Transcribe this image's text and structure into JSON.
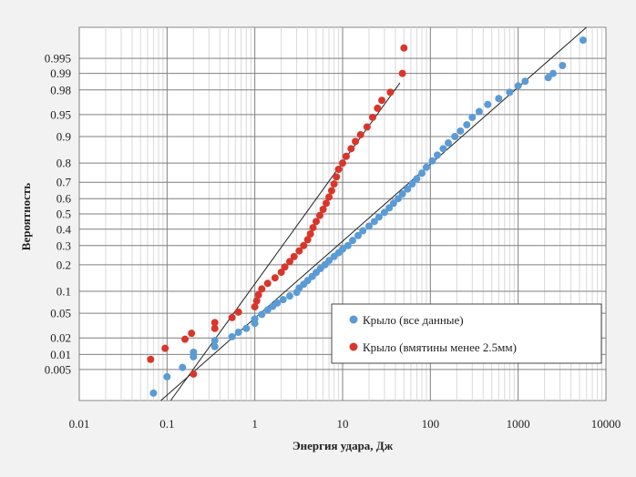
{
  "chart_data": {
    "type": "scatter",
    "xlabel": "Энергия удара, Дж",
    "ylabel": "Вероятность",
    "xscale": "log",
    "yscale": "probability",
    "xlim": [
      0.01,
      10000
    ],
    "ylim": [
      0.001,
      0.999
    ],
    "grid": true,
    "legend_position": "bottom-right",
    "x_tick_labels": [
      "0.01",
      "0.1",
      "1",
      "10",
      "100",
      "1000",
      "10000"
    ],
    "y_tick_labels": [
      "0.995",
      "0.99",
      "0.98",
      "0.95",
      "0.9",
      "0.8",
      "0.7",
      "0.6",
      "0.5",
      "0.4",
      "0.3",
      "0.2",
      "0.1",
      "0.05",
      "0.02",
      "0.01",
      "0.005"
    ],
    "series": [
      {
        "name": "Крыло (все данные)",
        "color": "#5b9bd5",
        "points": [
          [
            0.07,
            0.0015
          ],
          [
            0.1,
            0.0035
          ],
          [
            0.15,
            0.0055
          ],
          [
            0.2,
            0.009
          ],
          [
            0.2,
            0.011
          ],
          [
            0.35,
            0.014
          ],
          [
            0.35,
            0.018
          ],
          [
            0.55,
            0.021
          ],
          [
            0.65,
            0.025
          ],
          [
            0.8,
            0.029
          ],
          [
            1.0,
            0.035
          ],
          [
            1.0,
            0.041
          ],
          [
            1.2,
            0.048
          ],
          [
            1.4,
            0.056
          ],
          [
            1.6,
            0.063
          ],
          [
            1.8,
            0.07
          ],
          [
            2.1,
            0.078
          ],
          [
            2.5,
            0.087
          ],
          [
            3.0,
            0.097
          ],
          [
            3.2,
            0.11
          ],
          [
            3.6,
            0.122
          ],
          [
            4.0,
            0.135
          ],
          [
            4.5,
            0.15
          ],
          [
            5.0,
            0.166
          ],
          [
            5.6,
            0.183
          ],
          [
            6.3,
            0.2
          ],
          [
            7.0,
            0.22
          ],
          [
            8.0,
            0.24
          ],
          [
            9.0,
            0.26
          ],
          [
            10.0,
            0.28
          ],
          [
            11.5,
            0.3
          ],
          [
            13.0,
            0.33
          ],
          [
            15.0,
            0.36
          ],
          [
            17.0,
            0.39
          ],
          [
            20.0,
            0.42
          ],
          [
            23.0,
            0.45
          ],
          [
            26.0,
            0.48
          ],
          [
            30.0,
            0.51
          ],
          [
            34.0,
            0.54
          ],
          [
            38.0,
            0.57
          ],
          [
            43.0,
            0.6
          ],
          [
            48.0,
            0.63
          ],
          [
            55.0,
            0.66
          ],
          [
            62.0,
            0.69
          ],
          [
            70.0,
            0.72
          ],
          [
            80.0,
            0.75
          ],
          [
            90.0,
            0.78
          ],
          [
            105.0,
            0.81
          ],
          [
            120.0,
            0.835
          ],
          [
            140.0,
            0.86
          ],
          [
            160.0,
            0.88
          ],
          [
            190.0,
            0.9
          ],
          [
            220.0,
            0.915
          ],
          [
            260.0,
            0.93
          ],
          [
            300.0,
            0.945
          ],
          [
            360.0,
            0.955
          ],
          [
            450.0,
            0.965
          ],
          [
            600.0,
            0.972
          ],
          [
            800.0,
            0.978
          ],
          [
            1000.0,
            0.983
          ],
          [
            1200.0,
            0.986
          ],
          [
            2200.0,
            0.988
          ],
          [
            2500.0,
            0.99
          ],
          [
            3200.0,
            0.993
          ],
          [
            5500.0,
            0.998
          ]
        ]
      },
      {
        "name": "Крыло (вмятины менее 2.5мм)",
        "color": "#d9362b",
        "points": [
          [
            0.065,
            0.008
          ],
          [
            0.095,
            0.013
          ],
          [
            0.16,
            0.019
          ],
          [
            0.19,
            0.024
          ],
          [
            0.2,
            0.004
          ],
          [
            0.35,
            0.029
          ],
          [
            0.35,
            0.036
          ],
          [
            0.55,
            0.043
          ],
          [
            0.65,
            0.052
          ],
          [
            1.0,
            0.062
          ],
          [
            1.05,
            0.075
          ],
          [
            1.1,
            0.09
          ],
          [
            1.2,
            0.107
          ],
          [
            1.4,
            0.125
          ],
          [
            1.7,
            0.145
          ],
          [
            2.0,
            0.167
          ],
          [
            2.2,
            0.19
          ],
          [
            2.5,
            0.215
          ],
          [
            2.8,
            0.24
          ],
          [
            3.2,
            0.27
          ],
          [
            3.6,
            0.3
          ],
          [
            4.0,
            0.335
          ],
          [
            4.3,
            0.37
          ],
          [
            4.6,
            0.41
          ],
          [
            5.0,
            0.45
          ],
          [
            5.5,
            0.49
          ],
          [
            6.0,
            0.53
          ],
          [
            6.5,
            0.57
          ],
          [
            7.0,
            0.61
          ],
          [
            7.5,
            0.65
          ],
          [
            8.0,
            0.69
          ],
          [
            8.5,
            0.73
          ],
          [
            9.0,
            0.77
          ],
          [
            10.0,
            0.8
          ],
          [
            11.0,
            0.83
          ],
          [
            12.5,
            0.86
          ],
          [
            14.0,
            0.885
          ],
          [
            16.0,
            0.905
          ],
          [
            19.0,
            0.925
          ],
          [
            22.0,
            0.945
          ],
          [
            25.0,
            0.96
          ],
          [
            28.0,
            0.97
          ],
          [
            35.0,
            0.978
          ],
          [
            48.0,
            0.99
          ],
          [
            50.0,
            0.997
          ]
        ]
      }
    ],
    "fit_lines": [
      {
        "series": "Крыло (все данные)",
        "from": [
          0.085,
          0.001
        ],
        "to": [
          6000.0,
          0.999
        ]
      },
      {
        "series": "Крыло (вмятины менее 2.5мм)",
        "from": [
          0.11,
          0.001
        ],
        "to": [
          45.0,
          0.985
        ]
      }
    ]
  }
}
